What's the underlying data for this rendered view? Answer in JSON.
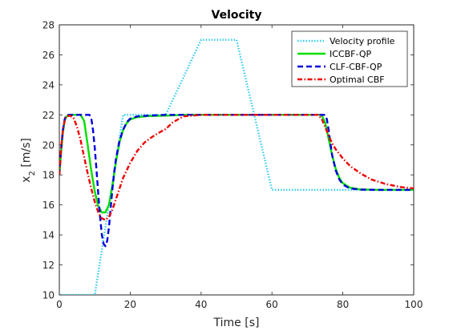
{
  "chart_data": {
    "type": "line",
    "title": "Velocity",
    "xlabel": "Time [s]",
    "ylabel_main": "x",
    "ylabel_sub": "2",
    "ylabel_unit": " [m/s]",
    "xlim": [
      0,
      100
    ],
    "ylim": [
      10,
      28
    ],
    "xticks": [
      0,
      20,
      40,
      60,
      80,
      100
    ],
    "yticks": [
      10,
      12,
      14,
      16,
      18,
      20,
      22,
      24,
      26,
      28
    ],
    "grid": false,
    "legend_position": "top-right",
    "series": [
      {
        "name": "Velocity profile",
        "color": "#33ccee",
        "style": "dotted",
        "points": [
          [
            0,
            10
          ],
          [
            10,
            10
          ],
          [
            18,
            22
          ],
          [
            30,
            22
          ],
          [
            40,
            27
          ],
          [
            50,
            27
          ],
          [
            60,
            17
          ],
          [
            100,
            17
          ]
        ]
      },
      {
        "name": "ICCBF-QP",
        "color": "#00e000",
        "style": "solid",
        "points": [
          [
            0,
            18
          ],
          [
            0.5,
            19.5
          ],
          [
            1,
            20.8
          ],
          [
            1.5,
            21.6
          ],
          [
            2,
            21.9
          ],
          [
            3,
            22
          ],
          [
            6,
            22
          ],
          [
            7,
            21.6
          ],
          [
            8,
            20
          ],
          [
            9,
            18.3
          ],
          [
            10,
            16.9
          ],
          [
            11,
            15.9
          ],
          [
            12,
            15.5
          ],
          [
            13,
            15.5
          ],
          [
            14,
            16
          ],
          [
            15,
            17.3
          ],
          [
            16,
            18.9
          ],
          [
            17,
            20.2
          ],
          [
            18,
            21
          ],
          [
            19,
            21.45
          ],
          [
            20,
            21.7
          ],
          [
            22,
            21.85
          ],
          [
            25,
            21.92
          ],
          [
            30,
            21.95
          ],
          [
            35,
            22
          ],
          [
            74,
            22
          ],
          [
            75,
            21.5
          ],
          [
            76,
            20.4
          ],
          [
            77,
            19.3
          ],
          [
            78,
            18.4
          ],
          [
            79,
            17.8
          ],
          [
            80,
            17.45
          ],
          [
            82,
            17.15
          ],
          [
            85,
            17.03
          ],
          [
            90,
            17
          ],
          [
            100,
            17
          ]
        ]
      },
      {
        "name": "CLF-CBF-QP",
        "color": "#0000dd",
        "style": "dashed",
        "points": [
          [
            0,
            18
          ],
          [
            0.5,
            19.7
          ],
          [
            1,
            21
          ],
          [
            1.5,
            21.7
          ],
          [
            2,
            22
          ],
          [
            8.5,
            22
          ],
          [
            9,
            21.8
          ],
          [
            9.5,
            21
          ],
          [
            10,
            19.8
          ],
          [
            10.5,
            18.3
          ],
          [
            11,
            16.7
          ],
          [
            11.5,
            15.2
          ],
          [
            12,
            14
          ],
          [
            12.5,
            13.4
          ],
          [
            13,
            13.25
          ],
          [
            13.5,
            13.6
          ],
          [
            14,
            14.5
          ],
          [
            14.5,
            15.8
          ],
          [
            15,
            17.1
          ],
          [
            15.5,
            18.2
          ],
          [
            16,
            19.1
          ],
          [
            17,
            20.3
          ],
          [
            18,
            21
          ],
          [
            19,
            21.5
          ],
          [
            20,
            21.75
          ],
          [
            22,
            21.9
          ],
          [
            25,
            21.95
          ],
          [
            30,
            22
          ],
          [
            75,
            22
          ],
          [
            75.5,
            21.7
          ],
          [
            76,
            21
          ],
          [
            76.5,
            20.1
          ],
          [
            77,
            19.3
          ],
          [
            78,
            18.3
          ],
          [
            79,
            17.7
          ],
          [
            80,
            17.35
          ],
          [
            82,
            17.1
          ],
          [
            85,
            17.02
          ],
          [
            90,
            17
          ],
          [
            100,
            17
          ]
        ]
      },
      {
        "name": "Optimal CBF",
        "color": "#ee0000",
        "style": "dashdot",
        "points": [
          [
            0,
            18
          ],
          [
            0.5,
            19.8
          ],
          [
            1,
            21
          ],
          [
            1.5,
            21.6
          ],
          [
            2,
            21.9
          ],
          [
            3,
            21.95
          ],
          [
            4,
            21.8
          ],
          [
            5,
            21.2
          ],
          [
            6,
            20.3
          ],
          [
            7,
            19.2
          ],
          [
            8,
            18.1
          ],
          [
            9,
            17.1
          ],
          [
            10,
            16.2
          ],
          [
            11,
            15.5
          ],
          [
            12,
            15.1
          ],
          [
            13,
            15
          ],
          [
            14,
            15.2
          ],
          [
            15,
            15.7
          ],
          [
            16,
            16.4
          ],
          [
            17,
            17.1
          ],
          [
            18,
            17.8
          ],
          [
            20,
            18.8
          ],
          [
            22,
            19.6
          ],
          [
            24,
            20.15
          ],
          [
            26,
            20.5
          ],
          [
            28,
            20.8
          ],
          [
            30,
            21.05
          ],
          [
            32,
            21.5
          ],
          [
            35,
            21.9
          ],
          [
            40,
            22
          ],
          [
            73,
            22
          ],
          [
            74,
            21.75
          ],
          [
            75,
            21.2
          ],
          [
            76,
            20.6
          ],
          [
            77,
            20.1
          ],
          [
            78,
            19.7
          ],
          [
            80,
            19.1
          ],
          [
            82,
            18.6
          ],
          [
            85,
            18.1
          ],
          [
            88,
            17.7
          ],
          [
            92,
            17.4
          ],
          [
            96,
            17.2
          ],
          [
            100,
            17.1
          ]
        ]
      }
    ]
  }
}
